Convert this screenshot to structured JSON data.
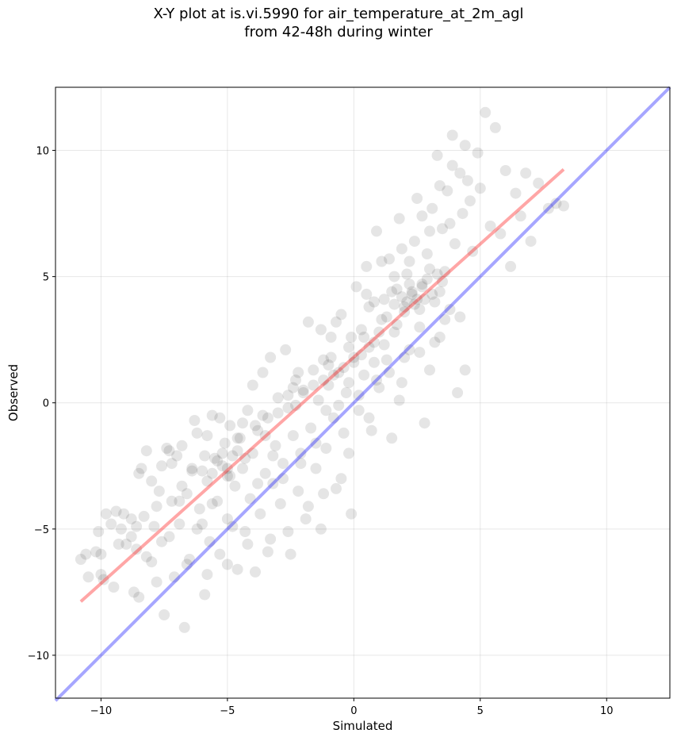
{
  "chart_data": {
    "type": "scatter",
    "title": "X-Y plot at is.vi.5990 for air_temperature_at_2m_agl",
    "subtitle": "from 42-48h during winter",
    "xlabel": "Simulated",
    "ylabel": "Observed",
    "xlim": [
      -11.8,
      12.5
    ],
    "ylim": [
      -11.7,
      12.5
    ],
    "xticks": [
      -10,
      -5,
      0,
      5,
      10
    ],
    "yticks": [
      -10,
      -5,
      0,
      5,
      10
    ],
    "xtick_labels": [
      "−10",
      "−5",
      "0",
      "5",
      "10"
    ],
    "ytick_labels": [
      "−10",
      "−5",
      "0",
      "5",
      "10"
    ],
    "grid": true,
    "points": [
      [
        -10.8,
        -6.2
      ],
      [
        -10.6,
        -6.0
      ],
      [
        -10.5,
        -6.9
      ],
      [
        -10.2,
        -5.9
      ],
      [
        -10.1,
        -5.1
      ],
      [
        -10.0,
        -6.0
      ],
      [
        -10.0,
        -6.8
      ],
      [
        -9.9,
        -7.0
      ],
      [
        -9.6,
        -4.8
      ],
      [
        -9.5,
        -7.3
      ],
      [
        -9.4,
        -4.3
      ],
      [
        -9.2,
        -5.0
      ],
      [
        -9.1,
        -4.4
      ],
      [
        -8.8,
        -5.3
      ],
      [
        -8.7,
        -7.5
      ],
      [
        -8.6,
        -5.8
      ],
      [
        -8.5,
        -7.7
      ],
      [
        -8.5,
        -2.8
      ],
      [
        -8.3,
        -4.5
      ],
      [
        -8.2,
        -1.9
      ],
      [
        -8.0,
        -6.3
      ],
      [
        -7.9,
        -4.9
      ],
      [
        -7.8,
        -7.1
      ],
      [
        -7.7,
        -3.5
      ],
      [
        -7.6,
        -2.5
      ],
      [
        -7.5,
        -8.4
      ],
      [
        -7.4,
        -1.8
      ],
      [
        -7.3,
        -5.3
      ],
      [
        -7.2,
        -3.9
      ],
      [
        -7.1,
        -6.9
      ],
      [
        -7.0,
        -2.1
      ],
      [
        -6.9,
        -4.8
      ],
      [
        -6.8,
        -1.7
      ],
      [
        -6.7,
        -8.9
      ],
      [
        -6.6,
        -3.6
      ],
      [
        -6.5,
        -6.2
      ],
      [
        -6.4,
        -2.6
      ],
      [
        -6.3,
        -0.7
      ],
      [
        -6.2,
        -5.0
      ],
      [
        -6.1,
        -4.2
      ],
      [
        -6.0,
        -2.7
      ],
      [
        -5.9,
        -7.6
      ],
      [
        -5.8,
        -3.1
      ],
      [
        -5.8,
        -1.3
      ],
      [
        -5.7,
        -5.5
      ],
      [
        -5.6,
        -0.5
      ],
      [
        -5.5,
        -2.2
      ],
      [
        -5.4,
        -3.9
      ],
      [
        -5.3,
        -6.0
      ],
      [
        -5.2,
        -2.5
      ],
      [
        -5.1,
        -1.6
      ],
      [
        -5.0,
        -2.9
      ],
      [
        -5.0,
        -4.6
      ],
      [
        -4.9,
        -0.9
      ],
      [
        -4.8,
        -2.1
      ],
      [
        -4.7,
        -3.3
      ],
      [
        -4.6,
        -6.6
      ],
      [
        -4.5,
        -1.4
      ],
      [
        -4.4,
        -2.6
      ],
      [
        -4.3,
        -5.1
      ],
      [
        -4.2,
        -0.3
      ],
      [
        -4.1,
        -3.8
      ],
      [
        -4.0,
        -2.0
      ],
      [
        -3.9,
        -6.7
      ],
      [
        -3.8,
        -1.1
      ],
      [
        -3.7,
        -4.4
      ],
      [
        -3.6,
        1.2
      ],
      [
        -3.5,
        -2.8
      ],
      [
        -3.4,
        -0.6
      ],
      [
        -3.3,
        -5.4
      ],
      [
        -3.2,
        -3.2
      ],
      [
        -3.1,
        -1.7
      ],
      [
        -3.0,
        0.2
      ],
      [
        -2.9,
        -4.0
      ],
      [
        -2.8,
        -2.4
      ],
      [
        -2.7,
        2.1
      ],
      [
        -2.6,
        -0.2
      ],
      [
        -2.5,
        -6.0
      ],
      [
        -2.4,
        -1.3
      ],
      [
        -2.3,
        0.9
      ],
      [
        -2.2,
        -3.5
      ],
      [
        -2.1,
        -2.0
      ],
      [
        -2.0,
        0.5
      ],
      [
        -1.9,
        -4.6
      ],
      [
        -1.8,
        3.2
      ],
      [
        -1.7,
        -1.0
      ],
      [
        -1.6,
        1.3
      ],
      [
        -1.5,
        -2.6
      ],
      [
        -1.4,
        0.1
      ],
      [
        -1.3,
        -5.0
      ],
      [
        -1.2,
        1.7
      ],
      [
        -1.1,
        -1.8
      ],
      [
        -1.0,
        0.7
      ],
      [
        -0.9,
        2.6
      ],
      [
        -0.8,
        -0.6
      ],
      [
        -0.7,
        -3.4
      ],
      [
        -0.6,
        1.2
      ],
      [
        -0.5,
        3.5
      ],
      [
        -0.4,
        -1.2
      ],
      [
        -0.3,
        0.4
      ],
      [
        -0.2,
        2.2
      ],
      [
        -0.1,
        -4.4
      ],
      [
        0.0,
        1.8
      ],
      [
        0.1,
        4.6
      ],
      [
        0.2,
        -0.3
      ],
      [
        0.3,
        2.9
      ],
      [
        0.4,
        1.1
      ],
      [
        0.5,
        5.4
      ],
      [
        0.6,
        3.8
      ],
      [
        0.7,
        -1.1
      ],
      [
        0.8,
        2.4
      ],
      [
        0.9,
        6.8
      ],
      [
        1.0,
        0.6
      ],
      [
        1.1,
        3.3
      ],
      [
        1.2,
        4.1
      ],
      [
        1.3,
        1.7
      ],
      [
        1.4,
        5.7
      ],
      [
        1.5,
        -1.4
      ],
      [
        1.6,
        2.8
      ],
      [
        1.7,
        4.5
      ],
      [
        1.8,
        7.3
      ],
      [
        1.9,
        0.8
      ],
      [
        2.0,
        3.6
      ],
      [
        2.1,
        5.1
      ],
      [
        2.2,
        2.1
      ],
      [
        2.3,
        4.3
      ],
      [
        2.4,
        6.4
      ],
      [
        2.5,
        8.1
      ],
      [
        2.6,
        3.0
      ],
      [
        2.7,
        4.7
      ],
      [
        2.8,
        -0.8
      ],
      [
        2.9,
        5.9
      ],
      [
        3.0,
        1.3
      ],
      [
        3.1,
        7.7
      ],
      [
        3.2,
        4.0
      ],
      [
        3.3,
        9.8
      ],
      [
        3.4,
        2.6
      ],
      [
        3.5,
        6.9
      ],
      [
        3.6,
        5.2
      ],
      [
        3.7,
        8.4
      ],
      [
        3.8,
        3.7
      ],
      [
        3.9,
        10.6
      ],
      [
        4.0,
        6.3
      ],
      [
        4.1,
        0.4
      ],
      [
        4.2,
        9.1
      ],
      [
        4.3,
        7.5
      ],
      [
        4.4,
        1.3
      ],
      [
        4.5,
        8.8
      ],
      [
        4.7,
        6.0
      ],
      [
        4.9,
        9.9
      ],
      [
        5.0,
        8.5
      ],
      [
        5.2,
        11.5
      ],
      [
        5.4,
        7.0
      ],
      [
        5.6,
        10.9
      ],
      [
        5.8,
        6.7
      ],
      [
        6.0,
        9.2
      ],
      [
        6.2,
        5.4
      ],
      [
        6.4,
        8.3
      ],
      [
        6.6,
        7.4
      ],
      [
        6.8,
        9.1
      ],
      [
        7.0,
        6.4
      ],
      [
        7.3,
        8.7
      ],
      [
        7.7,
        7.7
      ],
      [
        8.0,
        7.9
      ],
      [
        8.3,
        7.8
      ],
      [
        -5.4,
        -2.3
      ],
      [
        -5.2,
        -2.0
      ],
      [
        -5.0,
        -2.6
      ],
      [
        -4.6,
        -1.9
      ],
      [
        -4.3,
        -2.2
      ],
      [
        -3.9,
        -0.9
      ],
      [
        -2.0,
        0.4
      ],
      [
        -1.6,
        0.7
      ],
      [
        -1.2,
        0.9
      ],
      [
        -0.8,
        1.1
      ],
      [
        -0.4,
        1.4
      ],
      [
        0.0,
        1.6
      ],
      [
        0.3,
        1.9
      ],
      [
        0.6,
        2.2
      ],
      [
        1.0,
        2.8
      ],
      [
        1.3,
        3.4
      ],
      [
        1.6,
        3.9
      ],
      [
        1.9,
        4.2
      ],
      [
        2.1,
        4.0
      ],
      [
        2.3,
        4.4
      ],
      [
        2.5,
        4.1
      ],
      [
        2.7,
        4.6
      ],
      [
        2.9,
        4.9
      ],
      [
        3.1,
        4.3
      ],
      [
        3.3,
        5.1
      ],
      [
        3.5,
        4.8
      ],
      [
        2.0,
        3.8
      ],
      [
        2.6,
        3.7
      ],
      [
        1.7,
        3.1
      ],
      [
        3.0,
        5.3
      ],
      [
        -3.0,
        -0.4
      ],
      [
        -2.6,
        0.3
      ],
      [
        -2.3,
        -0.1
      ],
      [
        -1.0,
        1.5
      ],
      [
        0.4,
        2.6
      ],
      [
        1.2,
        2.3
      ],
      [
        2.2,
        4.7
      ],
      [
        2.8,
        4.1
      ],
      [
        3.4,
        4.4
      ],
      [
        -6.4,
        -2.7
      ],
      [
        -5.9,
        -2.1
      ],
      [
        -4.9,
        -2.9
      ],
      [
        -4.4,
        -0.8
      ],
      [
        -3.5,
        -1.3
      ],
      [
        -0.2,
        0.8
      ],
      [
        0.8,
        1.6
      ],
      [
        1.5,
        4.4
      ],
      [
        2.4,
        3.9
      ],
      [
        -8.0,
        -3.1
      ],
      [
        -7.2,
        -2.4
      ],
      [
        -6.9,
        -3.9
      ],
      [
        -6.0,
        -4.8
      ],
      [
        -5.6,
        -4.0
      ],
      [
        -4.8,
        -4.9
      ],
      [
        -3.8,
        -3.2
      ],
      [
        -3.2,
        -2.1
      ],
      [
        -2.8,
        -3.0
      ],
      [
        -2.1,
        -2.4
      ],
      [
        -1.5,
        -1.6
      ],
      [
        -1.1,
        -0.3
      ],
      [
        -0.6,
        -0.1
      ],
      [
        0.2,
        0.3
      ],
      [
        0.9,
        0.9
      ],
      [
        1.4,
        1.2
      ],
      [
        2.0,
        1.8
      ],
      [
        2.6,
        2.0
      ],
      [
        3.2,
        2.4
      ],
      [
        3.6,
        3.3
      ],
      [
        4.2,
        3.4
      ],
      [
        -9.0,
        -5.6
      ],
      [
        -8.2,
        -6.1
      ],
      [
        -7.6,
        -5.5
      ],
      [
        -6.6,
        -6.4
      ],
      [
        -5.8,
        -6.8
      ],
      [
        -5.0,
        -6.4
      ],
      [
        -4.2,
        -5.6
      ],
      [
        -3.4,
        -5.9
      ],
      [
        -2.6,
        -5.1
      ],
      [
        -1.8,
        -4.1
      ],
      [
        -1.2,
        -3.6
      ],
      [
        -0.5,
        -3.0
      ],
      [
        -0.2,
        -2.0
      ],
      [
        0.6,
        -0.6
      ],
      [
        1.8,
        0.1
      ],
      [
        -9.8,
        -4.4
      ],
      [
        -8.8,
        -4.6
      ],
      [
        -8.4,
        -2.6
      ],
      [
        -7.3,
        -1.9
      ],
      [
        -6.2,
        -1.2
      ],
      [
        -5.3,
        -0.6
      ],
      [
        -4.0,
        0.7
      ],
      [
        -3.3,
        1.8
      ],
      [
        -2.2,
        1.2
      ],
      [
        -1.3,
        2.9
      ],
      [
        -0.7,
        3.2
      ],
      [
        0.5,
        4.3
      ],
      [
        1.1,
        5.6
      ],
      [
        1.9,
        6.1
      ],
      [
        2.7,
        7.4
      ],
      [
        3.4,
        8.6
      ],
      [
        3.9,
        9.4
      ],
      [
        4.4,
        10.2
      ],
      [
        4.6,
        8.0
      ],
      [
        3.8,
        7.1
      ],
      [
        3.0,
        6.8
      ],
      [
        2.2,
        5.6
      ],
      [
        1.6,
        5.0
      ],
      [
        0.8,
        4.0
      ],
      [
        -0.1,
        2.6
      ],
      [
        -0.9,
        1.8
      ],
      [
        -2.4,
        0.6
      ],
      [
        -3.6,
        -0.5
      ],
      [
        -4.6,
        -1.4
      ],
      [
        -5.6,
        -2.8
      ],
      [
        -6.8,
        -3.3
      ],
      [
        -7.8,
        -4.1
      ],
      [
        -8.6,
        -4.9
      ],
      [
        -9.3,
        -5.6
      ]
    ]
  }
}
